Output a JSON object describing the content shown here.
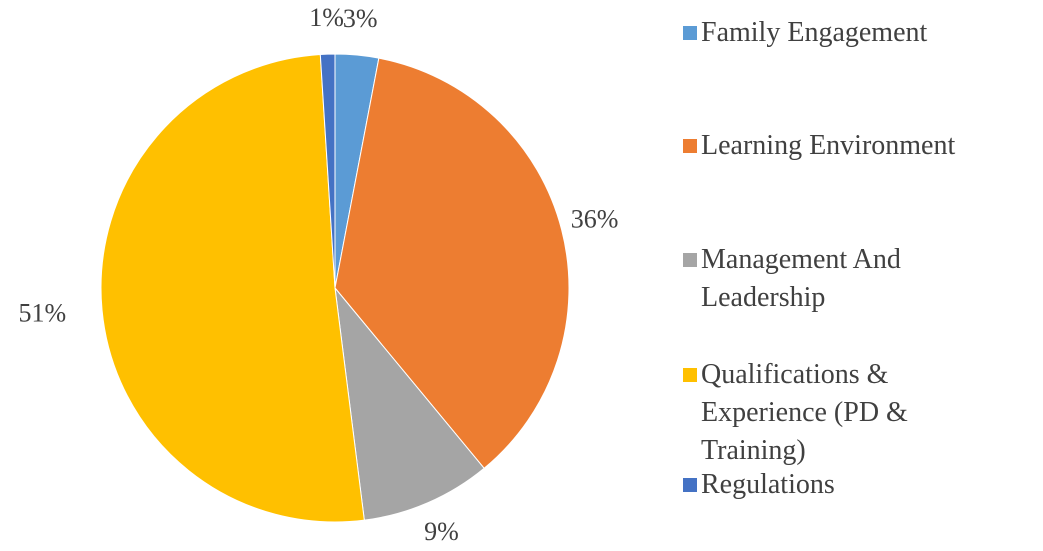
{
  "chart_data": {
    "type": "pie",
    "categories": [
      "Family Engagement",
      "Learning Environment",
      "Management And Leadership",
      "Qualifications & Experience (PD & Training)",
      "Regulations"
    ],
    "values": [
      3,
      36,
      9,
      51,
      1
    ],
    "value_labels": [
      "3%",
      "36%",
      "9%",
      "51%",
      "1%"
    ],
    "colors": [
      "#5b9bd5",
      "#ed7d31",
      "#a5a5a5",
      "#ffc000",
      "#4472c4"
    ],
    "legend": "right"
  }
}
